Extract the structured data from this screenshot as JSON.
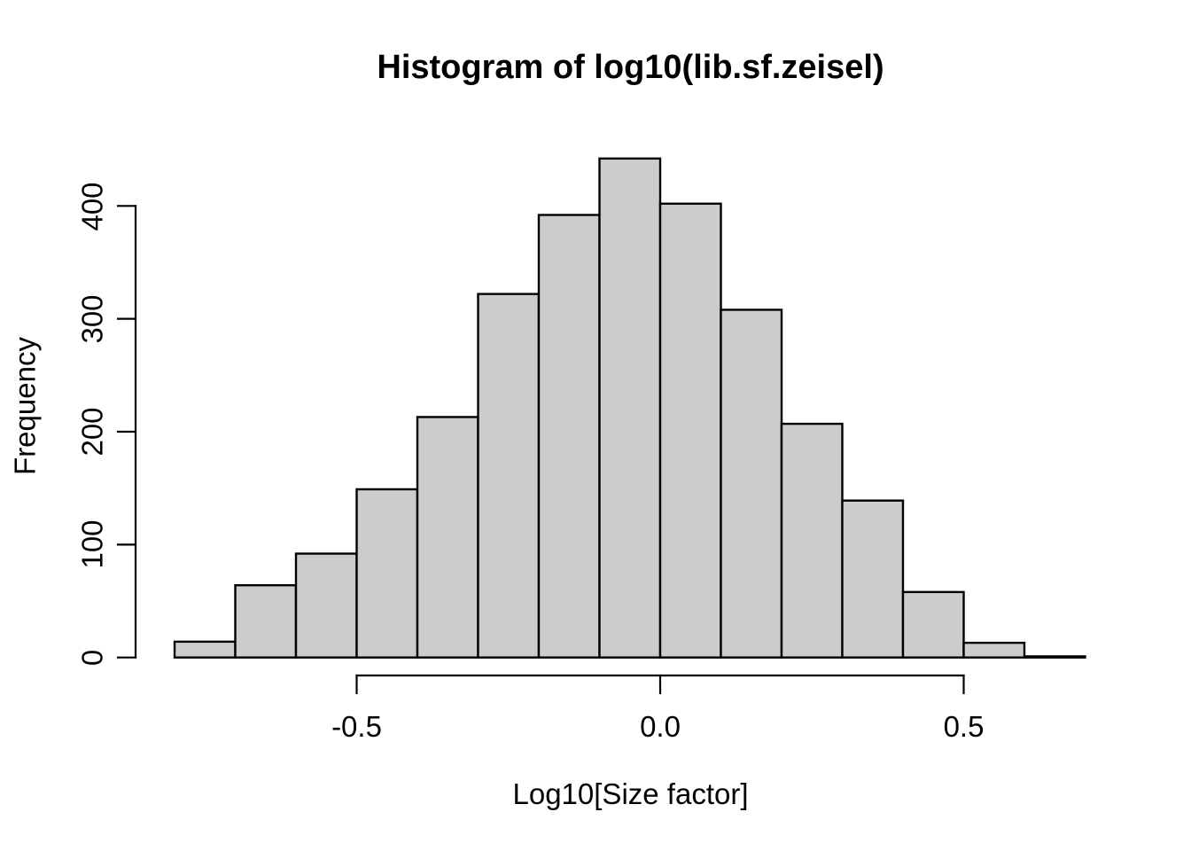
{
  "chart_data": {
    "type": "bar",
    "subtype": "histogram",
    "title": "Histogram of log10(lib.sf.zeisel)",
    "xlabel": "Log10[Size factor]",
    "ylabel": "Frequency",
    "bin_start": -0.8,
    "bin_width": 0.1,
    "bin_edges": [
      -0.8,
      -0.7,
      -0.6,
      -0.5,
      -0.4,
      -0.3,
      -0.2,
      -0.1,
      0.0,
      0.1,
      0.2,
      0.3,
      0.4,
      0.5,
      0.6,
      0.7
    ],
    "counts": [
      14,
      64,
      92,
      149,
      213,
      322,
      392,
      442,
      402,
      308,
      207,
      139,
      58,
      13,
      1
    ],
    "x_ticks": {
      "values": [
        -0.5,
        0.0,
        0.5
      ],
      "labels": [
        "-0.5",
        "0.0",
        "0.5"
      ]
    },
    "y_ticks": {
      "values": [
        0,
        100,
        200,
        300,
        400
      ],
      "labels": [
        "0",
        "100",
        "200",
        "300",
        "400"
      ]
    },
    "xlim": [
      -0.8,
      0.7
    ],
    "ylim": [
      0,
      440
    ],
    "grid": false,
    "legend": null,
    "colors": {
      "bar_fill": "#CCCCCC",
      "bar_stroke": "#000000",
      "axis": "#000000",
      "text": "#000000",
      "background": "#FFFFFF"
    }
  }
}
